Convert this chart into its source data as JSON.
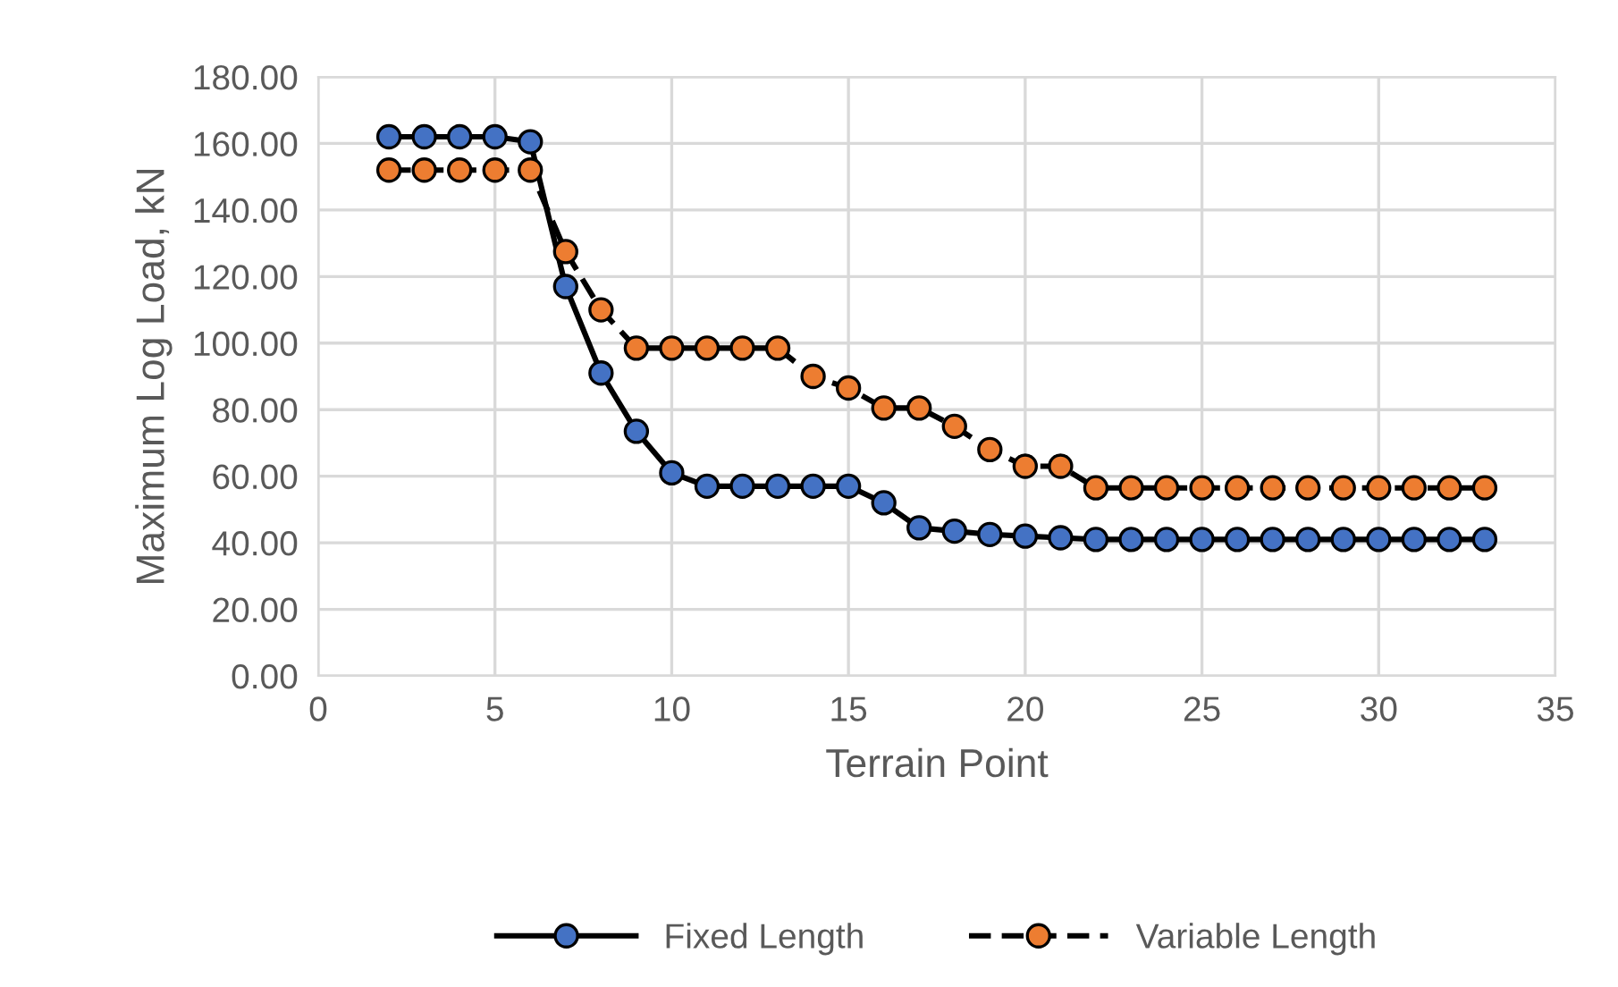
{
  "chart_data": {
    "type": "line",
    "xlabel": "Terrain Point",
    "ylabel": "Maximum Log Load, kN",
    "x": [
      2,
      3,
      4,
      5,
      6,
      7,
      8,
      9,
      10,
      11,
      12,
      13,
      14,
      15,
      16,
      17,
      18,
      19,
      20,
      21,
      22,
      23,
      24,
      25,
      26,
      27,
      28,
      29,
      30,
      31,
      32,
      33
    ],
    "series": [
      {
        "name": "Fixed Length",
        "color": "#4472c4",
        "line_style": "solid",
        "values": [
          162,
          162,
          162,
          162,
          160.5,
          117,
          91,
          73.5,
          61,
          57,
          57,
          57,
          57,
          57,
          52,
          44.5,
          43.5,
          42.5,
          42,
          41.5,
          41,
          41,
          41,
          41,
          41,
          41,
          41,
          41,
          41,
          41,
          41,
          41
        ]
      },
      {
        "name": "Variable Length",
        "color": "#ed7d31",
        "line_style": "dashed",
        "values": [
          152,
          152,
          152,
          152,
          152,
          127.5,
          110,
          98.5,
          98.5,
          98.5,
          98.5,
          98.5,
          90,
          86.5,
          80.5,
          80.5,
          75,
          68,
          63,
          63,
          56.5,
          56.5,
          56.5,
          56.5,
          56.5,
          56.5,
          56.5,
          56.5,
          56.5,
          56.5,
          56.5,
          56.5
        ]
      }
    ],
    "xlim": [
      0,
      35
    ],
    "xticks": [
      0,
      5,
      10,
      15,
      20,
      25,
      30,
      35
    ],
    "ylim": [
      0,
      180
    ],
    "yticks": [
      {
        "value": 0,
        "label": "0.00"
      },
      {
        "value": 20,
        "label": "20.00"
      },
      {
        "value": 40,
        "label": "40.00"
      },
      {
        "value": 60,
        "label": "60.00"
      },
      {
        "value": 80,
        "label": "80.00"
      },
      {
        "value": 100,
        "label": "100.00"
      },
      {
        "value": 120,
        "label": "120.00"
      },
      {
        "value": 140,
        "label": "140.00"
      },
      {
        "value": 160,
        "label": "160.00"
      },
      {
        "value": 180,
        "label": "180.00"
      }
    ],
    "grid": true,
    "legend": "bottom",
    "marker": "circle"
  }
}
